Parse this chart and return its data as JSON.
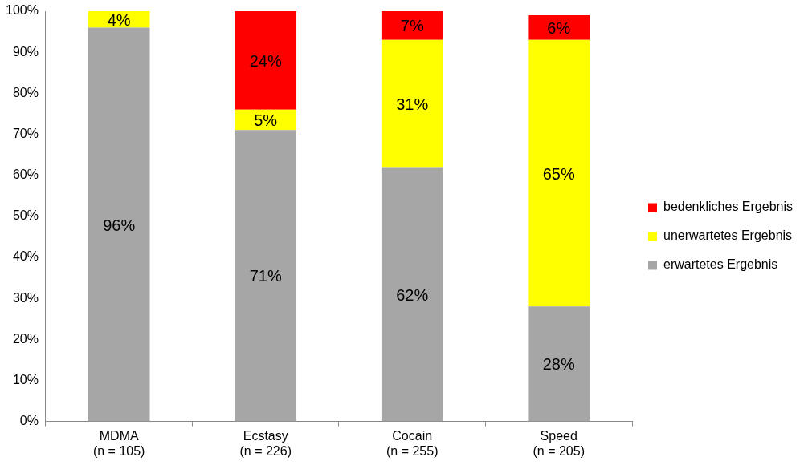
{
  "chart_data": {
    "type": "bar",
    "stacked": true,
    "categories": [
      "MDMA\n(n = 105)",
      "Ecstasy\n(n = 226)",
      "Cocain\n(n = 255)",
      "Speed\n(n = 205)"
    ],
    "series": [
      {
        "name": "erwartetes Ergebnis",
        "color": "#a6a6a6",
        "values": [
          96,
          71,
          62,
          28
        ]
      },
      {
        "name": "unerwartetes Ergebnis",
        "color": "#ffff00",
        "values": [
          4,
          5,
          31,
          65
        ]
      },
      {
        "name": "bedenkliches Ergebnis",
        "color": "#ff0000",
        "values": [
          null,
          24,
          7,
          6
        ]
      }
    ],
    "ylim": [
      0,
      100
    ],
    "yticks": [
      {
        "value": 0,
        "label": "0%"
      },
      {
        "value": 10,
        "label": "10%"
      },
      {
        "value": 20,
        "label": "20%"
      },
      {
        "value": 30,
        "label": "30%"
      },
      {
        "value": 40,
        "label": "40%"
      },
      {
        "value": 50,
        "label": "50%"
      },
      {
        "value": 60,
        "label": "60%"
      },
      {
        "value": 70,
        "label": "70%"
      },
      {
        "value": 80,
        "label": "80%"
      },
      {
        "value": 90,
        "label": "90%"
      },
      {
        "value": 100,
        "label": "100%"
      }
    ],
    "value_labels": [
      [
        "96%",
        "71%",
        "62%",
        "28%"
      ],
      [
        "4%",
        "5%",
        "31%",
        "65%"
      ],
      [
        null,
        "24%",
        "7%",
        "6%"
      ]
    ],
    "grid": false,
    "legend": "right"
  }
}
